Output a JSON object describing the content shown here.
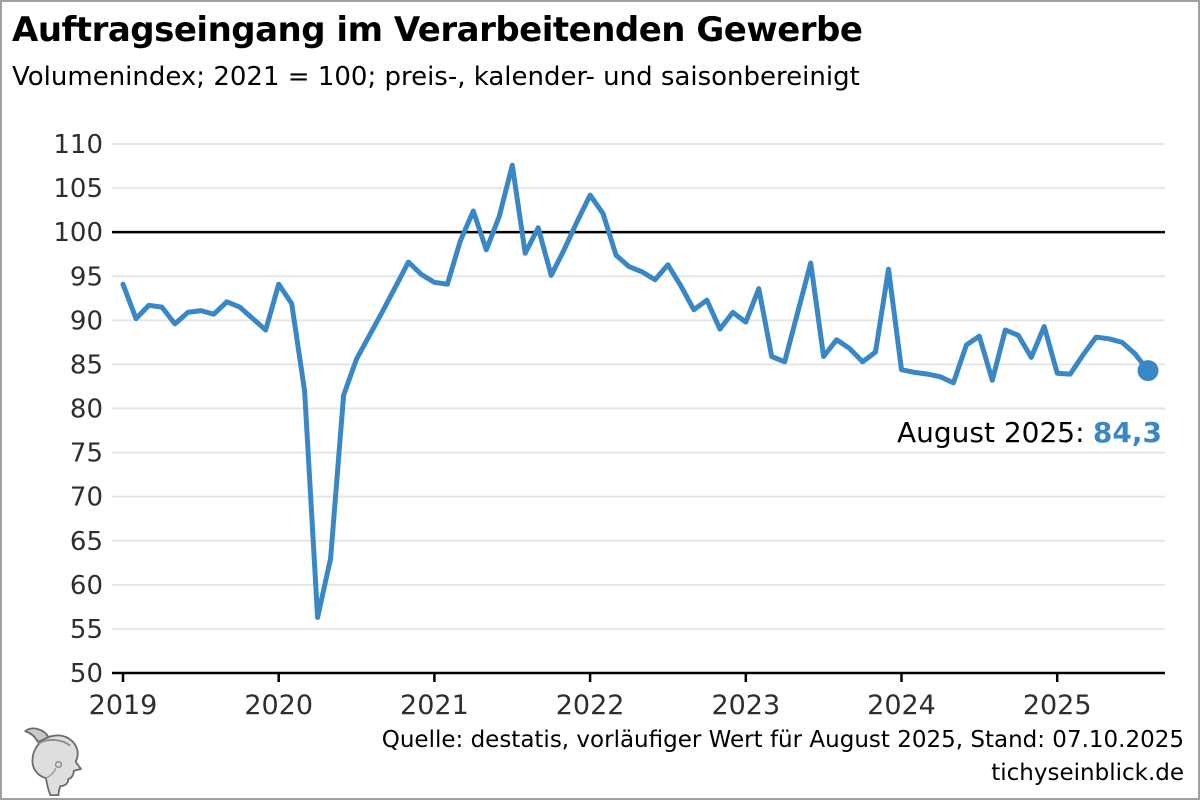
{
  "header": {
    "title": "Auftragseingang im Verarbeitenden Gewerbe",
    "subtitle": "Volumenindex; 2021 = 100; preis-, kalender- und saisonbereinigt"
  },
  "annotation": {
    "label": "August 2025:",
    "value": "84,3"
  },
  "footer": {
    "source": "Quelle: destatis, vorläufiger Wert für August 2025, Stand: 07.10.2025",
    "site": "tichyseinblick.de"
  },
  "icons": {
    "logo": "hermes-head-logo"
  },
  "colors": {
    "line": "#3a87c6",
    "grid": "#e6e6e6",
    "axis": "#000000",
    "tick_text": "#2e2e2e",
    "frame_border": "#a0a0a0"
  },
  "chart_data": {
    "type": "line",
    "title": "Auftragseingang im Verarbeitenden Gewerbe",
    "subtitle": "Volumenindex; 2021 = 100; preis-, kalender- und saisonbereinigt",
    "x_start_month": "2019-01",
    "x_end_month": "2025-08",
    "x_tick_labels": [
      "2019",
      "2020",
      "2021",
      "2022",
      "2023",
      "2024",
      "2025"
    ],
    "y_ticks": [
      110,
      105,
      100,
      95,
      90,
      85,
      80,
      75,
      70,
      65,
      60,
      55,
      50
    ],
    "ylim": [
      50,
      110
    ],
    "reference_line": 100,
    "grid": true,
    "legend": false,
    "series": [
      {
        "name": "Volumenindex Auftragseingang",
        "values": [
          94.1,
          90.2,
          91.7,
          91.5,
          89.6,
          90.9,
          91.1,
          90.7,
          92.1,
          91.5,
          90.2,
          88.9,
          94.1,
          91.9,
          82.0,
          56.3,
          63.0,
          81.5,
          85.6,
          88.3,
          91.0,
          93.8,
          96.6,
          95.2,
          94.3,
          94.1,
          99.0,
          102.4,
          98.0,
          101.8,
          107.6,
          97.6,
          100.5,
          95.1,
          98.0,
          101.2,
          104.2,
          102.1,
          97.4,
          96.1,
          95.5,
          94.6,
          96.3,
          93.9,
          91.2,
          92.3,
          89.0,
          90.9,
          89.8,
          93.6,
          85.9,
          85.3,
          90.9,
          96.5,
          85.9,
          87.8,
          86.8,
          85.3,
          86.4,
          95.8,
          84.4,
          84.1,
          83.9,
          83.6,
          82.9,
          87.2,
          88.2,
          83.2,
          88.9,
          88.3,
          85.8,
          89.3,
          84.0,
          83.9,
          86.1,
          88.1,
          87.9,
          87.5,
          86.2,
          84.3
        ]
      }
    ],
    "last_point": {
      "month": "2025-08",
      "label": "August 2025",
      "value": 84.3
    }
  }
}
